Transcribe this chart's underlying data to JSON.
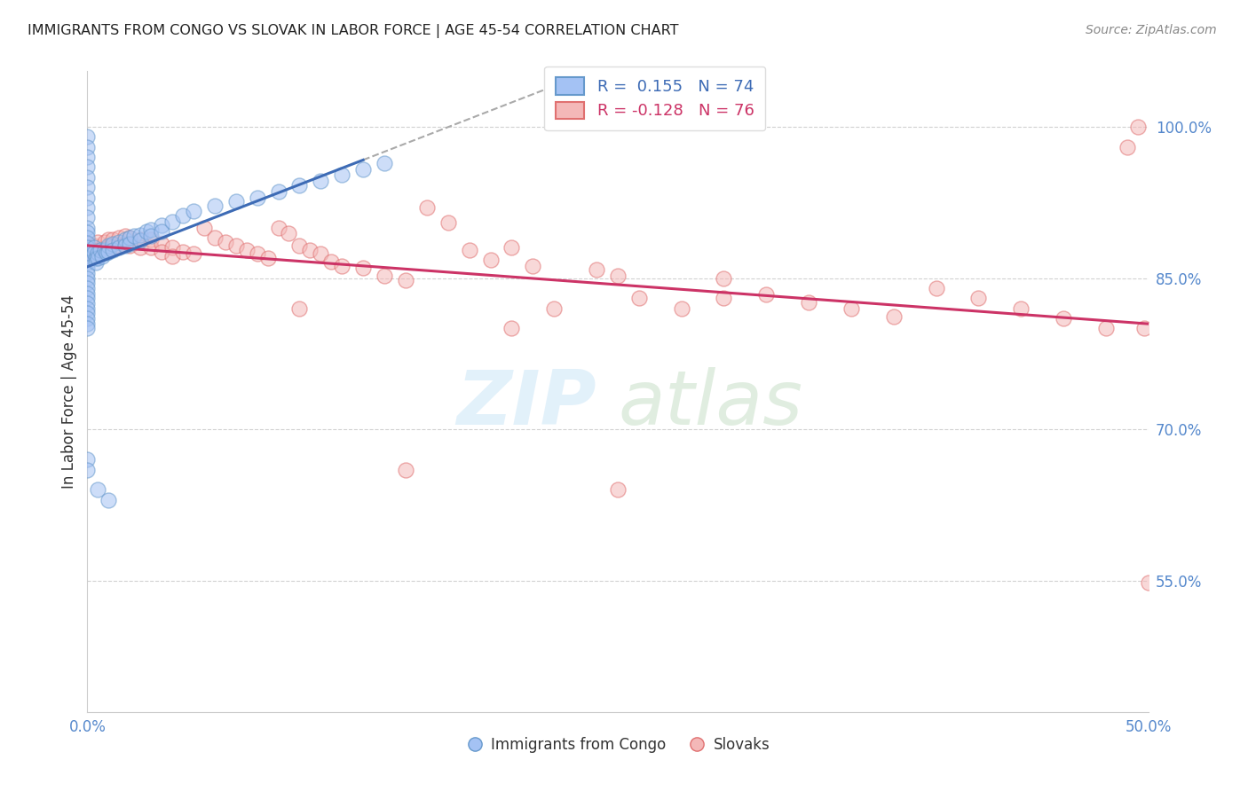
{
  "title": "IMMIGRANTS FROM CONGO VS SLOVAK IN LABOR FORCE | AGE 45-54 CORRELATION CHART",
  "source": "Source: ZipAtlas.com",
  "ylabel": "In Labor Force | Age 45-54",
  "x_min": 0.0,
  "x_max": 0.5,
  "y_min": 0.42,
  "y_max": 1.055,
  "x_tick_vals": [
    0.0,
    0.1,
    0.2,
    0.3,
    0.4,
    0.5
  ],
  "x_tick_labels": [
    "0.0%",
    "",
    "",
    "",
    "",
    "50.0%"
  ],
  "y_tick_vals": [
    0.55,
    0.7,
    0.85,
    1.0
  ],
  "y_tick_labels": [
    "55.0%",
    "70.0%",
    "85.0%",
    "100.0%"
  ],
  "congo_R": 0.155,
  "congo_N": 74,
  "slovak_R": -0.128,
  "slovak_N": 76,
  "congo_face": "#a4c2f4",
  "slovak_face": "#f4b8b8",
  "congo_edge": "#6699cc",
  "slovak_edge": "#e07070",
  "congo_line": "#3d6bb5",
  "slovak_line": "#cc3366",
  "tick_color": "#5588cc",
  "title_color": "#222222",
  "source_color": "#888888",
  "background": "#ffffff",
  "grid_color": "#cccccc",
  "legend_top_labels": [
    "R =  0.155   N = 74",
    "R = -0.128   N = 76"
  ],
  "legend_bottom_labels": [
    "Immigrants from Congo",
    "Slovaks"
  ],
  "congo_x": [
    0.0,
    0.0,
    0.0,
    0.0,
    0.0,
    0.0,
    0.0,
    0.0,
    0.0,
    0.0,
    0.0,
    0.0,
    0.0,
    0.0,
    0.0,
    0.0,
    0.0,
    0.0,
    0.0,
    0.0,
    0.0,
    0.0,
    0.0,
    0.0,
    0.0,
    0.0,
    0.0,
    0.0,
    0.0,
    0.0,
    0.003,
    0.003,
    0.004,
    0.004,
    0.005,
    0.005,
    0.006,
    0.007,
    0.008,
    0.009,
    0.01,
    0.01,
    0.012,
    0.012,
    0.015,
    0.015,
    0.018,
    0.018,
    0.02,
    0.02,
    0.022,
    0.025,
    0.025,
    0.028,
    0.03,
    0.03,
    0.035,
    0.035,
    0.04,
    0.045,
    0.05,
    0.06,
    0.07,
    0.08,
    0.09,
    0.1,
    0.11,
    0.12,
    0.13,
    0.14,
    0.0,
    0.0,
    0.005,
    0.01
  ],
  "congo_y": [
    0.99,
    0.98,
    0.97,
    0.96,
    0.95,
    0.94,
    0.93,
    0.92,
    0.91,
    0.9,
    0.895,
    0.89,
    0.885,
    0.88,
    0.875,
    0.87,
    0.865,
    0.86,
    0.855,
    0.85,
    0.845,
    0.84,
    0.835,
    0.83,
    0.825,
    0.82,
    0.815,
    0.81,
    0.805,
    0.8,
    0.88,
    0.875,
    0.87,
    0.865,
    0.875,
    0.87,
    0.878,
    0.872,
    0.878,
    0.875,
    0.882,
    0.876,
    0.884,
    0.878,
    0.886,
    0.88,
    0.888,
    0.882,
    0.89,
    0.884,
    0.892,
    0.893,
    0.887,
    0.896,
    0.898,
    0.892,
    0.902,
    0.896,
    0.906,
    0.912,
    0.916,
    0.922,
    0.926,
    0.93,
    0.936,
    0.942,
    0.946,
    0.952,
    0.958,
    0.964,
    0.67,
    0.66,
    0.64,
    0.63
  ],
  "slovak_x": [
    0.0,
    0.0,
    0.0,
    0.003,
    0.003,
    0.005,
    0.005,
    0.008,
    0.008,
    0.01,
    0.01,
    0.012,
    0.012,
    0.015,
    0.015,
    0.018,
    0.018,
    0.02,
    0.02,
    0.025,
    0.025,
    0.03,
    0.03,
    0.035,
    0.035,
    0.04,
    0.04,
    0.045,
    0.05,
    0.055,
    0.06,
    0.065,
    0.07,
    0.075,
    0.08,
    0.085,
    0.09,
    0.095,
    0.1,
    0.105,
    0.11,
    0.115,
    0.12,
    0.13,
    0.14,
    0.15,
    0.16,
    0.17,
    0.18,
    0.19,
    0.2,
    0.21,
    0.22,
    0.24,
    0.25,
    0.26,
    0.28,
    0.3,
    0.32,
    0.34,
    0.36,
    0.38,
    0.4,
    0.42,
    0.44,
    0.46,
    0.48,
    0.49,
    0.495,
    0.498,
    0.1,
    0.15,
    0.2,
    0.25,
    0.3,
    0.5
  ],
  "slovak_y": [
    0.884,
    0.876,
    0.868,
    0.882,
    0.874,
    0.886,
    0.878,
    0.886,
    0.878,
    0.888,
    0.88,
    0.888,
    0.88,
    0.89,
    0.882,
    0.892,
    0.884,
    0.89,
    0.882,
    0.888,
    0.88,
    0.888,
    0.88,
    0.884,
    0.876,
    0.88,
    0.872,
    0.876,
    0.874,
    0.9,
    0.89,
    0.886,
    0.882,
    0.878,
    0.874,
    0.87,
    0.9,
    0.894,
    0.882,
    0.878,
    0.874,
    0.866,
    0.862,
    0.86,
    0.852,
    0.848,
    0.92,
    0.905,
    0.878,
    0.868,
    0.88,
    0.862,
    0.82,
    0.858,
    0.852,
    0.83,
    0.82,
    0.85,
    0.834,
    0.826,
    0.82,
    0.812,
    0.84,
    0.83,
    0.82,
    0.81,
    0.8,
    0.98,
    1.0,
    0.8,
    0.82,
    0.66,
    0.8,
    0.64,
    0.83,
    0.548
  ]
}
